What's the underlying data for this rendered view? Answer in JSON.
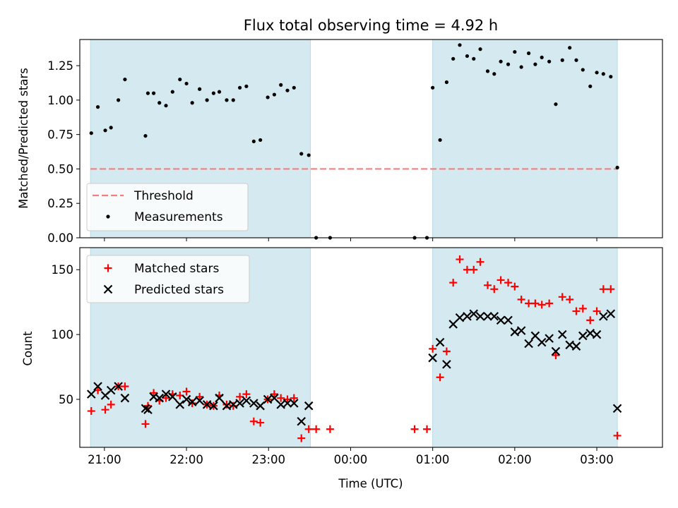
{
  "chart_data": [
    {
      "type": "scatter",
      "title": "Flux total observing time = 4.92 h",
      "ylabel": "Matched/Predicted stars",
      "xlabel": "",
      "x_unit": "hours since 00:00 UTC",
      "xlim": [
        -3.3,
        3.8
      ],
      "ylim": [
        0.0,
        1.44
      ],
      "x_ticks": [
        -3,
        -2,
        -1,
        0,
        1,
        2,
        3
      ],
      "y_ticks": [
        0.0,
        0.25,
        0.5,
        0.75,
        1.0,
        1.25
      ],
      "y_tick_labels": [
        "0.00",
        "0.25",
        "0.50",
        "0.75",
        "1.00",
        "1.25"
      ],
      "shaded_spans": [
        [
          -3.17,
          -0.49
        ],
        [
          1.0,
          3.25
        ]
      ],
      "shade_color": "#d4eaf0",
      "threshold": {
        "name": "Threshold",
        "value": 0.5,
        "x_range": [
          -3.17,
          3.25
        ],
        "color": "#f08080"
      },
      "series": [
        {
          "name": "Measurements",
          "color": "#000000",
          "points": [
            [
              -3.16,
              0.76
            ],
            [
              -3.08,
              0.95
            ],
            [
              -2.99,
              0.78
            ],
            [
              -2.92,
              0.8
            ],
            [
              -2.83,
              1.0
            ],
            [
              -2.75,
              1.15
            ],
            [
              -2.5,
              0.74
            ],
            [
              -2.47,
              1.05
            ],
            [
              -2.4,
              1.05
            ],
            [
              -2.33,
              0.98
            ],
            [
              -2.25,
              0.96
            ],
            [
              -2.17,
              1.06
            ],
            [
              -2.08,
              1.15
            ],
            [
              -2.0,
              1.12
            ],
            [
              -1.93,
              0.98
            ],
            [
              -1.84,
              1.08
            ],
            [
              -1.75,
              1.0
            ],
            [
              -1.67,
              1.05
            ],
            [
              -1.6,
              1.06
            ],
            [
              -1.51,
              1.0
            ],
            [
              -1.43,
              1.0
            ],
            [
              -1.35,
              1.09
            ],
            [
              -1.27,
              1.1
            ],
            [
              -1.18,
              0.7
            ],
            [
              -1.1,
              0.71
            ],
            [
              -1.01,
              1.02
            ],
            [
              -0.93,
              1.04
            ],
            [
              -0.85,
              1.11
            ],
            [
              -0.77,
              1.07
            ],
            [
              -0.69,
              1.09
            ],
            [
              -0.6,
              0.61
            ],
            [
              -0.51,
              0.6
            ],
            [
              -0.42,
              0.0
            ],
            [
              -0.25,
              0.0
            ],
            [
              0.78,
              0.0
            ],
            [
              0.93,
              0.0
            ],
            [
              1.0,
              1.09
            ],
            [
              1.09,
              0.71
            ],
            [
              1.17,
              1.13
            ],
            [
              1.25,
              1.3
            ],
            [
              1.33,
              1.4
            ],
            [
              1.42,
              1.32
            ],
            [
              1.5,
              1.3
            ],
            [
              1.58,
              1.37
            ],
            [
              1.67,
              1.21
            ],
            [
              1.75,
              1.19
            ],
            [
              1.83,
              1.28
            ],
            [
              1.92,
              1.26
            ],
            [
              2.0,
              1.35
            ],
            [
              2.08,
              1.24
            ],
            [
              2.17,
              1.34
            ],
            [
              2.25,
              1.26
            ],
            [
              2.33,
              1.31
            ],
            [
              2.42,
              1.28
            ],
            [
              2.5,
              0.97
            ],
            [
              2.58,
              1.29
            ],
            [
              2.67,
              1.38
            ],
            [
              2.75,
              1.29
            ],
            [
              2.83,
              1.22
            ],
            [
              2.92,
              1.1
            ],
            [
              3.0,
              1.2
            ],
            [
              3.08,
              1.19
            ],
            [
              3.17,
              1.17
            ],
            [
              3.25,
              0.51
            ]
          ]
        }
      ],
      "legend": {
        "placement": "lower-left",
        "entries": [
          "Threshold",
          "Measurements"
        ]
      }
    },
    {
      "type": "scatter",
      "title": "",
      "ylabel": "Count",
      "xlabel": "Time (UTC)",
      "x_unit": "hours since 00:00 UTC",
      "xlim": [
        -3.3,
        3.8
      ],
      "ylim": [
        13,
        167
      ],
      "x_ticks": [
        -3,
        -2,
        -1,
        0,
        1,
        2,
        3
      ],
      "x_tick_labels": [
        "21:00",
        "22:00",
        "23:00",
        "00:00",
        "01:00",
        "02:00",
        "03:00"
      ],
      "y_ticks": [
        50,
        100,
        150
      ],
      "y_tick_labels": [
        "50",
        "100",
        "150"
      ],
      "shaded_spans": [
        [
          -3.17,
          -0.49
        ],
        [
          1.0,
          3.25
        ]
      ],
      "shade_color": "#d4eaf0",
      "series": [
        {
          "name": "Matched stars",
          "marker": "plus",
          "color": "#ff0000",
          "points": [
            [
              -3.16,
              41
            ],
            [
              -3.08,
              57
            ],
            [
              -2.99,
              42
            ],
            [
              -2.92,
              46
            ],
            [
              -2.83,
              60
            ],
            [
              -2.75,
              60
            ],
            [
              -2.5,
              31
            ],
            [
              -2.47,
              45
            ],
            [
              -2.4,
              55
            ],
            [
              -2.33,
              49
            ],
            [
              -2.25,
              51
            ],
            [
              -2.17,
              54
            ],
            [
              -2.08,
              53
            ],
            [
              -2.0,
              56
            ],
            [
              -1.93,
              47
            ],
            [
              -1.84,
              52
            ],
            [
              -1.75,
              46
            ],
            [
              -1.67,
              45
            ],
            [
              -1.6,
              53
            ],
            [
              -1.51,
              46
            ],
            [
              -1.43,
              45
            ],
            [
              -1.35,
              52
            ],
            [
              -1.27,
              54
            ],
            [
              -1.18,
              33
            ],
            [
              -1.1,
              32
            ],
            [
              -1.01,
              50
            ],
            [
              -0.93,
              54
            ],
            [
              -0.85,
              51
            ],
            [
              -0.77,
              50
            ],
            [
              -0.69,
              51
            ],
            [
              -0.6,
              20
            ],
            [
              -0.51,
              27
            ],
            [
              -0.42,
              27
            ],
            [
              -0.25,
              27
            ],
            [
              0.78,
              27
            ],
            [
              0.93,
              27
            ],
            [
              1.0,
              89
            ],
            [
              1.09,
              67
            ],
            [
              1.17,
              87
            ],
            [
              1.25,
              140
            ],
            [
              1.33,
              158
            ],
            [
              1.42,
              150
            ],
            [
              1.5,
              150
            ],
            [
              1.58,
              156
            ],
            [
              1.67,
              138
            ],
            [
              1.75,
              135
            ],
            [
              1.83,
              142
            ],
            [
              1.92,
              140
            ],
            [
              2.0,
              137
            ],
            [
              2.08,
              127
            ],
            [
              2.17,
              124
            ],
            [
              2.25,
              124
            ],
            [
              2.33,
              123
            ],
            [
              2.42,
              124
            ],
            [
              2.5,
              84
            ],
            [
              2.58,
              129
            ],
            [
              2.67,
              127
            ],
            [
              2.75,
              118
            ],
            [
              2.83,
              120
            ],
            [
              2.92,
              111
            ],
            [
              3.0,
              118
            ],
            [
              3.08,
              135
            ],
            [
              3.17,
              135
            ],
            [
              3.25,
              22
            ]
          ]
        },
        {
          "name": "Predicted stars",
          "marker": "x",
          "color": "#000000",
          "points": [
            [
              -3.16,
              54
            ],
            [
              -3.08,
              60
            ],
            [
              -2.99,
              53
            ],
            [
              -2.92,
              57
            ],
            [
              -2.83,
              60
            ],
            [
              -2.75,
              51
            ],
            [
              -2.5,
              43
            ],
            [
              -2.47,
              42
            ],
            [
              -2.4,
              52
            ],
            [
              -2.33,
              51
            ],
            [
              -2.25,
              54
            ],
            [
              -2.17,
              52
            ],
            [
              -2.08,
              46
            ],
            [
              -2.0,
              50
            ],
            [
              -1.93,
              48
            ],
            [
              -1.84,
              49
            ],
            [
              -1.75,
              46
            ],
            [
              -1.67,
              45
            ],
            [
              -1.6,
              51
            ],
            [
              -1.51,
              45
            ],
            [
              -1.43,
              46
            ],
            [
              -1.35,
              47
            ],
            [
              -1.27,
              49
            ],
            [
              -1.18,
              47
            ],
            [
              -1.1,
              45
            ],
            [
              -1.01,
              50
            ],
            [
              -0.93,
              51
            ],
            [
              -0.85,
              46
            ],
            [
              -0.77,
              47
            ],
            [
              -0.69,
              47
            ],
            [
              -0.6,
              33
            ],
            [
              -0.51,
              45
            ],
            [
              1.0,
              82
            ],
            [
              1.09,
              94
            ],
            [
              1.17,
              77
            ],
            [
              1.25,
              108
            ],
            [
              1.33,
              113
            ],
            [
              1.42,
              114
            ],
            [
              1.5,
              116
            ],
            [
              1.58,
              114
            ],
            [
              1.67,
              114
            ],
            [
              1.75,
              114
            ],
            [
              1.83,
              111
            ],
            [
              1.92,
              111
            ],
            [
              2.0,
              102
            ],
            [
              2.08,
              103
            ],
            [
              2.17,
              93
            ],
            [
              2.25,
              99
            ],
            [
              2.33,
              94
            ],
            [
              2.42,
              97
            ],
            [
              2.5,
              87
            ],
            [
              2.58,
              100
            ],
            [
              2.67,
              92
            ],
            [
              2.75,
              91
            ],
            [
              2.83,
              99
            ],
            [
              2.92,
              101
            ],
            [
              3.0,
              100
            ],
            [
              3.08,
              114
            ],
            [
              3.17,
              116
            ],
            [
              3.25,
              43
            ]
          ]
        }
      ],
      "legend": {
        "placement": "top-left",
        "entries": [
          "Matched stars",
          "Predicted stars"
        ]
      }
    }
  ]
}
